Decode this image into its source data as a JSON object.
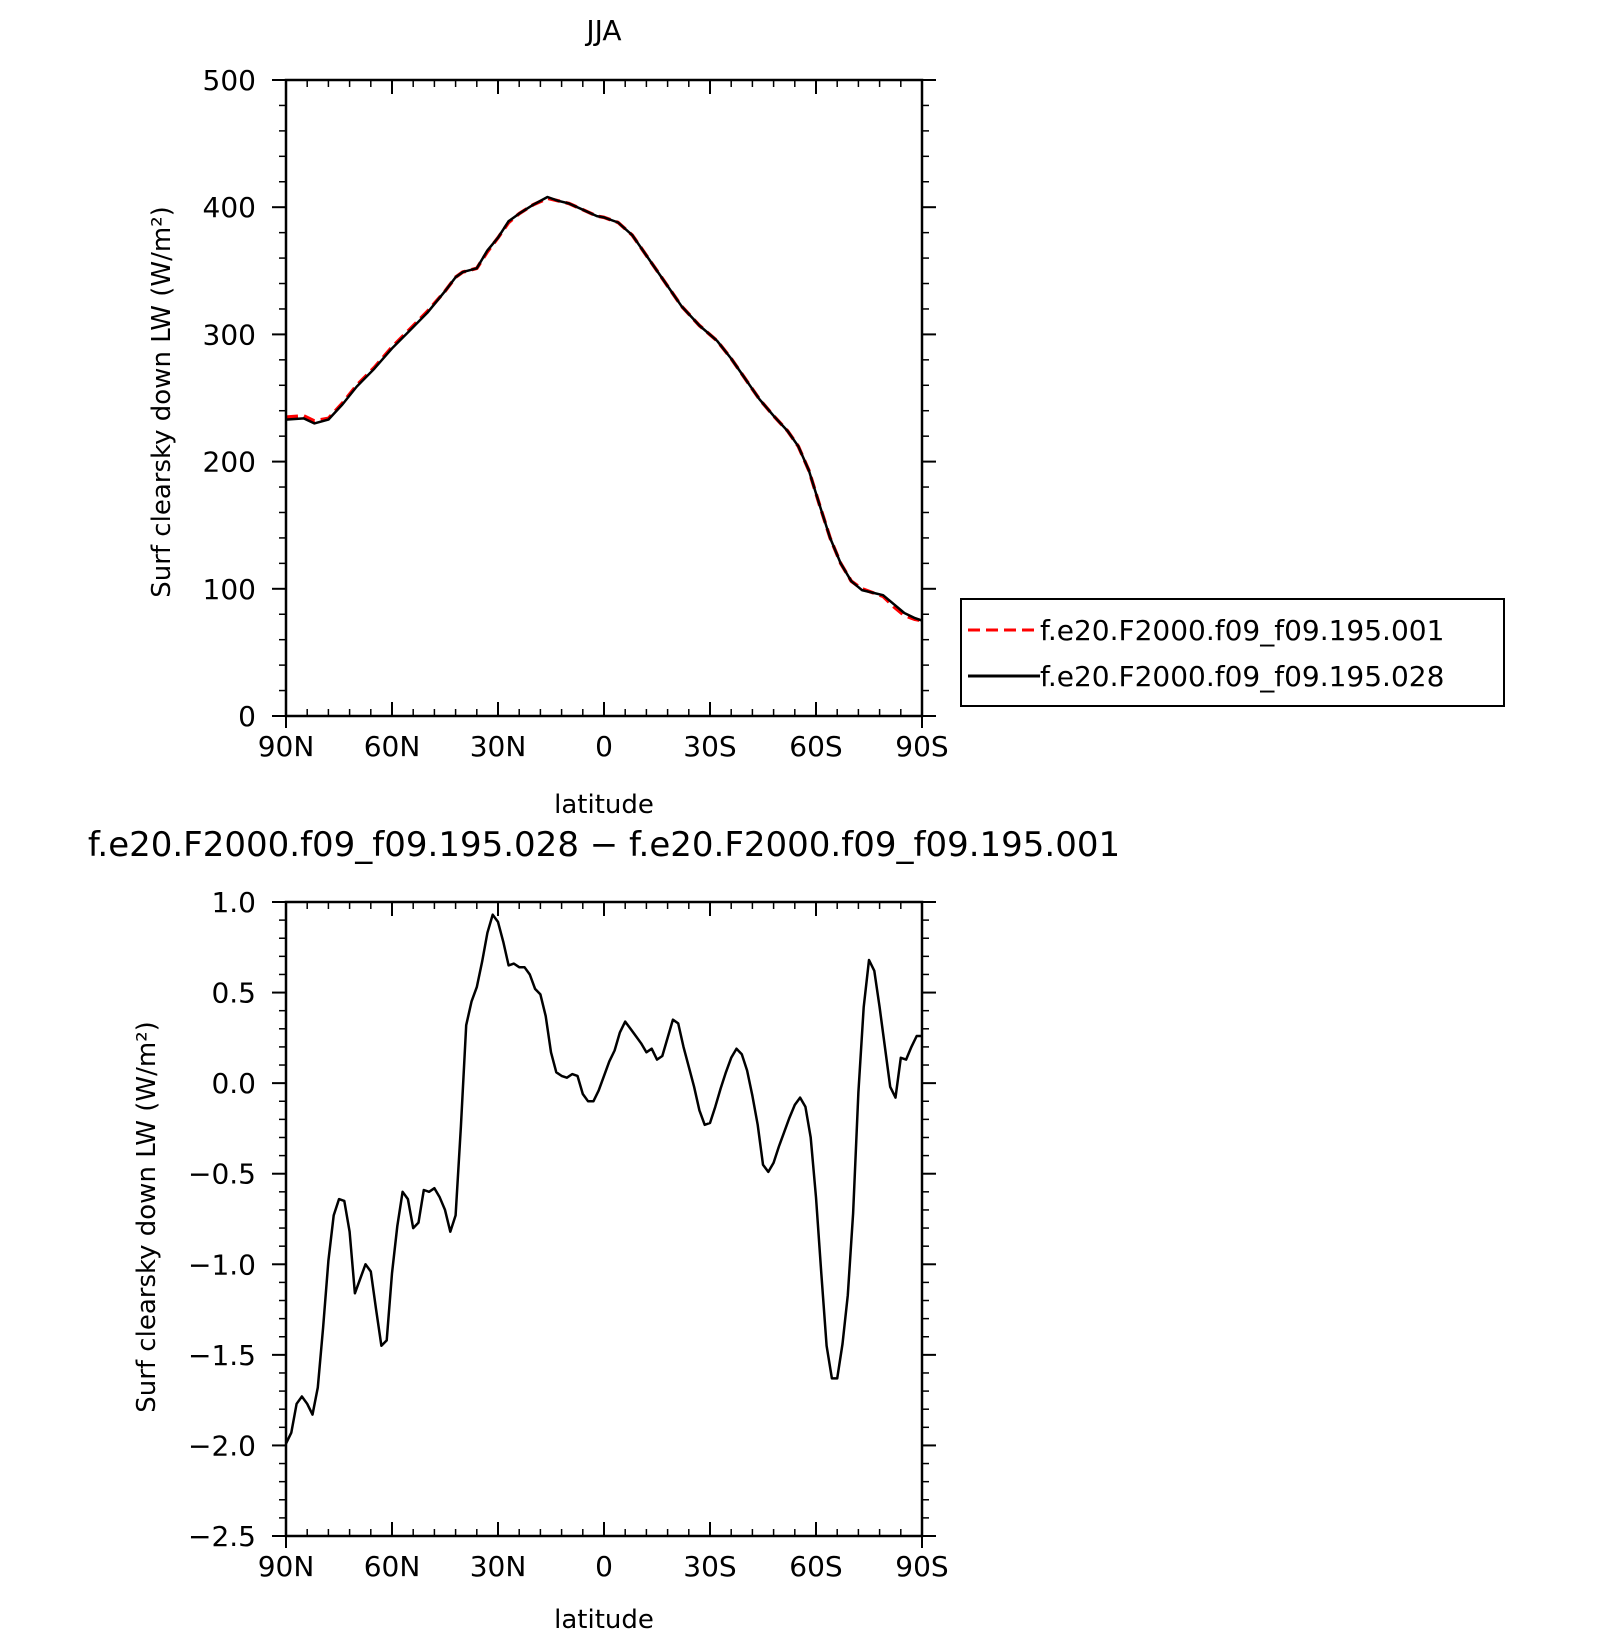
{
  "chart_data": [
    {
      "type": "line",
      "title": "JJA",
      "xlabel": "latitude",
      "ylabel": "Surf clearsky down LW (W/m²)",
      "xlim": [
        90,
        -90
      ],
      "ylim": [
        0,
        500
      ],
      "x_ticks": [
        {
          "value": 90,
          "label": "90N"
        },
        {
          "value": 60,
          "label": "60N"
        },
        {
          "value": 30,
          "label": "30N"
        },
        {
          "value": 0,
          "label": "0"
        },
        {
          "value": -30,
          "label": "30S"
        },
        {
          "value": -60,
          "label": "60S"
        },
        {
          "value": -90,
          "label": "90S"
        }
      ],
      "y_ticks": [
        {
          "value": 0,
          "label": "0"
        },
        {
          "value": 100,
          "label": "100"
        },
        {
          "value": 200,
          "label": "200"
        },
        {
          "value": 300,
          "label": "300"
        },
        {
          "value": 400,
          "label": "400"
        },
        {
          "value": 500,
          "label": "500"
        }
      ],
      "legend": "right, outside plot area",
      "series": [
        {
          "name": "f.e20.F2000.f09_f09.195.001",
          "color": "#ff0000",
          "dash": "dashed",
          "x": [
            90,
            85,
            82,
            78,
            74,
            70,
            65,
            60,
            55,
            50,
            45,
            42,
            40,
            36,
            33,
            30,
            27,
            24,
            20,
            16,
            13,
            10,
            6,
            2,
            0,
            -4,
            -8,
            -12,
            -17,
            -22,
            -27,
            -32,
            -36,
            -40,
            -44,
            -48,
            -52,
            -55,
            -58,
            -61,
            -64,
            -67,
            -70,
            -73,
            -76,
            -79,
            -82,
            -85,
            -88,
            -90
          ],
          "y": [
            235,
            236,
            232,
            234,
            246,
            260,
            274,
            290,
            304,
            318,
            334,
            345,
            349,
            352,
            365,
            376,
            388,
            395,
            402,
            407,
            405,
            403,
            398,
            393,
            392,
            388,
            378,
            362,
            342,
            322,
            307,
            295,
            281,
            265,
            249,
            236,
            224,
            212,
            193,
            166,
            140,
            120,
            106,
            100,
            97,
            94,
            86,
            79,
            76,
            75
          ]
        },
        {
          "name": "f.e20.F2000.f09_f09.195.028",
          "color": "#000000",
          "dash": "solid",
          "x": [
            90,
            85,
            82,
            78,
            74,
            70,
            65,
            60,
            55,
            50,
            45,
            42,
            40,
            36,
            33,
            30,
            27,
            24,
            20,
            16,
            13,
            10,
            6,
            2,
            0,
            -4,
            -8,
            -12,
            -17,
            -22,
            -27,
            -32,
            -36,
            -40,
            -44,
            -48,
            -52,
            -55,
            -58,
            -61,
            -64,
            -67,
            -70,
            -73,
            -76,
            -79,
            -82,
            -85,
            -88,
            -90
          ],
          "y": [
            233,
            234,
            230,
            233,
            245,
            259,
            273,
            289,
            303,
            317,
            334,
            345,
            349,
            352,
            366,
            376,
            389,
            395,
            402,
            408,
            405,
            403,
            398,
            393,
            392,
            388,
            378,
            362,
            342,
            322,
            307,
            295,
            281,
            265,
            249,
            236,
            224,
            212,
            193,
            166,
            140,
            120,
            106,
            99,
            97,
            95,
            88,
            81,
            77,
            75
          ]
        }
      ]
    },
    {
      "type": "line",
      "title": "f.e20.F2000.f09_f09.195.028 − f.e20.F2000.f09_f09.195.001",
      "xlabel": "latitude",
      "ylabel": "Surf clearsky down LW (W/m²)",
      "xlim": [
        90,
        -90
      ],
      "ylim": [
        -2.5,
        1.0
      ],
      "x_ticks": [
        {
          "value": 90,
          "label": "90N"
        },
        {
          "value": 60,
          "label": "60N"
        },
        {
          "value": 30,
          "label": "30N"
        },
        {
          "value": 0,
          "label": "0"
        },
        {
          "value": -30,
          "label": "30S"
        },
        {
          "value": -60,
          "label": "60S"
        },
        {
          "value": -90,
          "label": "90S"
        }
      ],
      "y_ticks": [
        {
          "value": -2.5,
          "label": "−2.5"
        },
        {
          "value": -2.0,
          "label": "−2.0"
        },
        {
          "value": -1.5,
          "label": "−1.5"
        },
        {
          "value": -1.0,
          "label": "−1.0"
        },
        {
          "value": -0.5,
          "label": "−0.5"
        },
        {
          "value": 0.0,
          "label": "0.0"
        },
        {
          "value": 0.5,
          "label": "0.5"
        },
        {
          "value": 1.0,
          "label": "1.0"
        }
      ],
      "series": [
        {
          "color": "#000000",
          "dash": "solid",
          "x": [
            90,
            88.5,
            87,
            85.5,
            84,
            82.5,
            81,
            79.5,
            78,
            76.5,
            75,
            73.5,
            72,
            70.5,
            69,
            67.5,
            66,
            64.5,
            63,
            61.5,
            60,
            58.5,
            57,
            55.5,
            54,
            52.5,
            51,
            49.5,
            48,
            46.5,
            45,
            43.5,
            42,
            40.5,
            39,
            37.5,
            36,
            34.5,
            33,
            31.5,
            30,
            28.5,
            27,
            25.5,
            24,
            22.5,
            21,
            19.5,
            18,
            16.5,
            15,
            13.5,
            12,
            10.5,
            9,
            7.5,
            6,
            4.5,
            3,
            1.5,
            0,
            -1.5,
            -3,
            -4.5,
            -6,
            -7.5,
            -9,
            -10.5,
            -12,
            -13.5,
            -15,
            -16.5,
            -18,
            -19.5,
            -21,
            -22.5,
            -24,
            -25.5,
            -27,
            -28.5,
            -30,
            -31.5,
            -33,
            -34.5,
            -36,
            -37.5,
            -39,
            -40.5,
            -42,
            -43.5,
            -45,
            -46.5,
            -48,
            -49.5,
            -51,
            -52.5,
            -54,
            -55.5,
            -57,
            -58.5,
            -60,
            -61.5,
            -63,
            -64.5,
            -66,
            -67.5,
            -69,
            -70.5,
            -72,
            -73.5,
            -75,
            -76.5,
            -78,
            -79.5,
            -81,
            -82.5,
            -84,
            -85.5,
            -87,
            -88.5,
            -90
          ],
          "y": [
            -1.99,
            -1.93,
            -1.77,
            -1.73,
            -1.77,
            -1.83,
            -1.68,
            -1.35,
            -0.98,
            -0.73,
            -0.64,
            -0.65,
            -0.82,
            -1.16,
            -1.08,
            -1.0,
            -1.04,
            -1.25,
            -1.45,
            -1.42,
            -1.05,
            -0.79,
            -0.6,
            -0.64,
            -0.8,
            -0.77,
            -0.59,
            -0.6,
            -0.58,
            -0.63,
            -0.7,
            -0.82,
            -0.73,
            -0.24,
            0.32,
            0.45,
            0.53,
            0.67,
            0.83,
            0.93,
            0.89,
            0.78,
            0.65,
            0.66,
            0.64,
            0.64,
            0.6,
            0.52,
            0.49,
            0.37,
            0.17,
            0.06,
            0.04,
            0.03,
            0.05,
            0.04,
            -0.06,
            -0.1,
            -0.1,
            -0.04,
            0.04,
            0.12,
            0.18,
            0.28,
            0.34,
            0.3,
            0.26,
            0.22,
            0.17,
            0.19,
            0.13,
            0.15,
            0.25,
            0.35,
            0.33,
            0.2,
            0.09,
            -0.02,
            -0.15,
            -0.23,
            -0.22,
            -0.13,
            -0.03,
            0.06,
            0.14,
            0.19,
            0.16,
            0.07,
            -0.07,
            -0.23,
            -0.45,
            -0.49,
            -0.44,
            -0.35,
            -0.27,
            -0.19,
            -0.12,
            -0.08,
            -0.13,
            -0.3,
            -0.63,
            -1.05,
            -1.45,
            -1.63,
            -1.63,
            -1.44,
            -1.17,
            -0.72,
            -0.05,
            0.42,
            0.68,
            0.62,
            0.42,
            0.2,
            -0.02,
            -0.08,
            0.14,
            0.13,
            0.2,
            0.26,
            0.26
          ]
        }
      ]
    }
  ]
}
